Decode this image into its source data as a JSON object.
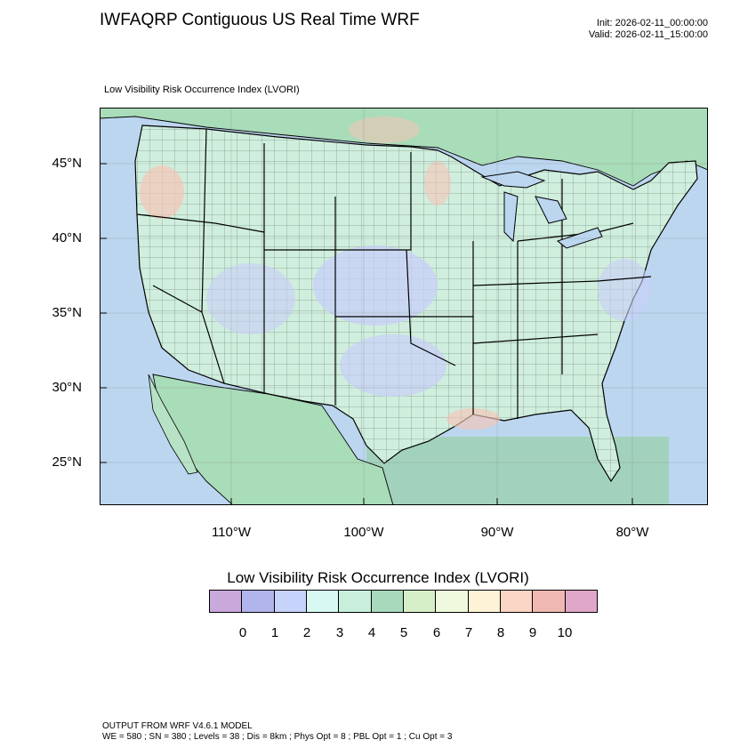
{
  "header": {
    "title": "IWFAQRP Contiguous US Real Time WRF",
    "init": "Init: 2026-02-11_00:00:00",
    "valid": "Valid: 2026-02-11_15:00:00"
  },
  "field_name": "Low Visibility Risk Occurrence Index   (LVORI)",
  "map": {
    "lat_labels": [
      "45°N",
      "40°N",
      "35°N",
      "30°N",
      "25°N"
    ],
    "lon_labels": [
      "110°W",
      "100°W",
      "90°W",
      "80°W"
    ],
    "colors": {
      "ocean": "#bcd6f0",
      "gulf": "#9fd2b6",
      "land_base": "#cfeedd",
      "canada": "#a9dcb9",
      "mexico": "#a9dcb9",
      "low_risk": "#c8cff8",
      "high_risk": "#f6c5b7",
      "border": "#000000"
    }
  },
  "colorbar": {
    "title": "Low Visibility Risk Occurrence Index  (LVORI)",
    "colors": [
      "#c9a8dc",
      "#b2b4ec",
      "#c6d3fb",
      "#d8f8f2",
      "#c7efdc",
      "#a8d9bd",
      "#d7efc9",
      "#eef9de",
      "#fff3d7",
      "#fbd5c5",
      "#f0b8b2",
      "#e0a7c9"
    ],
    "labels": [
      "0",
      "1",
      "2",
      "3",
      "4",
      "5",
      "6",
      "7",
      "8",
      "9",
      "10"
    ]
  },
  "footer": {
    "line1": "OUTPUT FROM WRF V4.6.1 MODEL",
    "line2": "WE = 580 ; SN = 380 ; Levels = 38 ; Dis = 8km ; Phys Opt = 8 ; PBL Opt = 1 ; Cu Opt = 3"
  }
}
